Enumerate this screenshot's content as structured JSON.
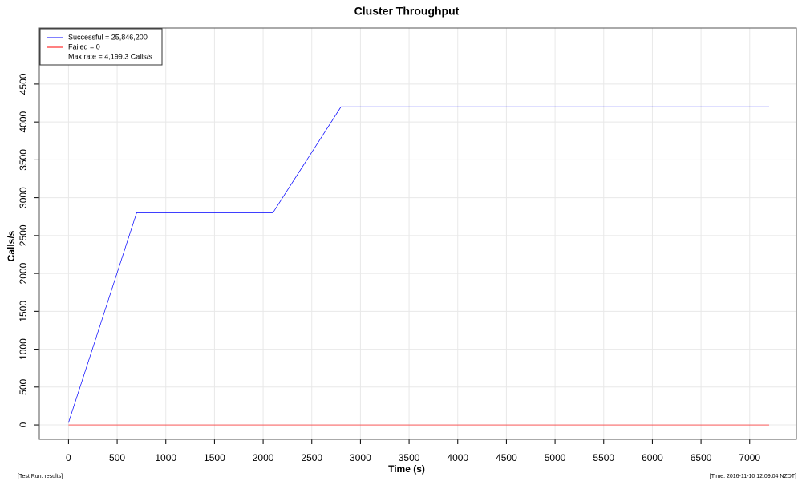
{
  "chart_data": {
    "type": "line",
    "title": "Cluster Throughput",
    "x_label": "Time (s)",
    "y_label": "Calls/s",
    "series": [
      {
        "name": "Successful = 25,846,200",
        "color": "#0000ff",
        "x": [
          0,
          700,
          2100,
          2800,
          7200
        ],
        "values": [
          30,
          2800,
          2800,
          4200,
          4200
        ]
      },
      {
        "name": "Failed = 0",
        "color": "#ff0000",
        "x": [
          0,
          7200
        ],
        "values": [
          0,
          0
        ]
      }
    ],
    "annotation": "Max rate = 4,199.3 Calls/s",
    "xlim": [
      -300,
      7480
    ],
    "ylim": [
      -190,
      5240
    ],
    "xticks": [
      0,
      500,
      1000,
      1500,
      2000,
      2500,
      3000,
      3500,
      4000,
      4500,
      5000,
      5500,
      6000,
      6500,
      7000
    ],
    "yticks": [
      0,
      500,
      1000,
      1500,
      2000,
      2500,
      3000,
      3500,
      4000,
      4500
    ],
    "grid": true,
    "legend": "top-left",
    "footer_left": "[Test Run: results]",
    "footer_right": "[Time: 2016-11-10 12:09:04 NZDT]"
  }
}
